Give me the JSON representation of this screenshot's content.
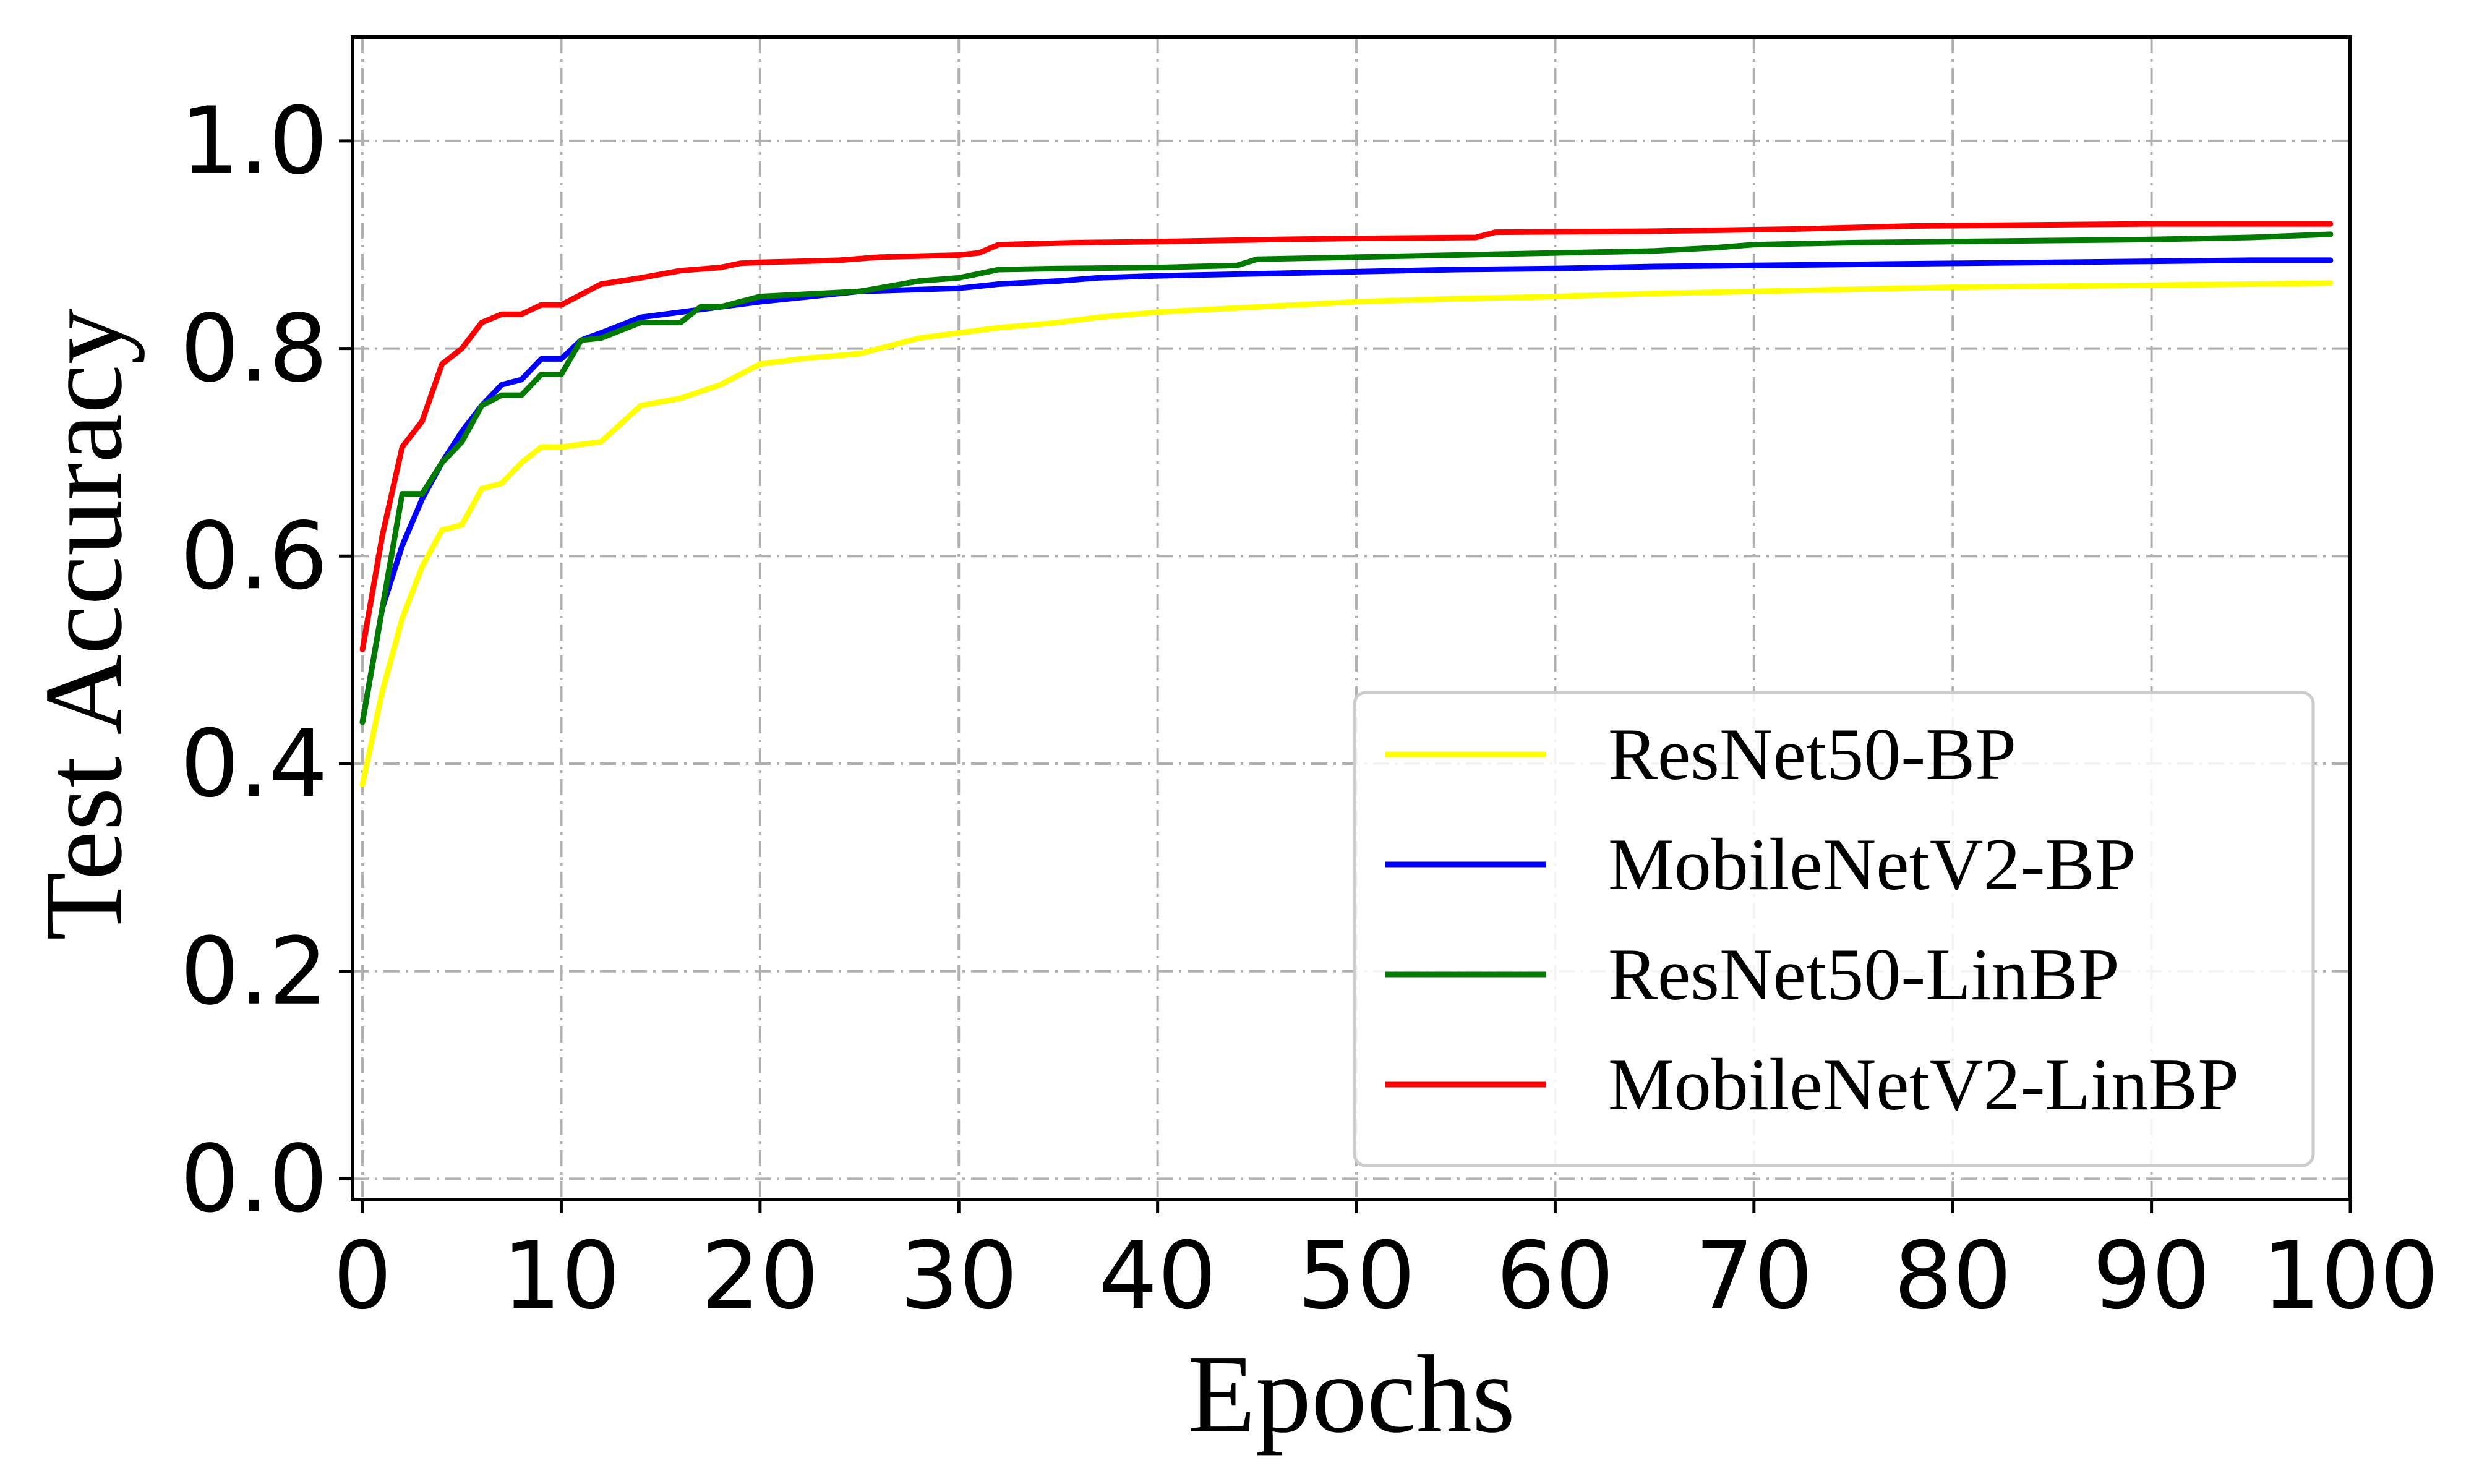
{
  "chart_data": {
    "type": "line",
    "xlabel": "Epochs",
    "ylabel": "Test Accuracy",
    "xlim": [
      -0.5,
      100
    ],
    "ylim": [
      -0.02,
      1.1
    ],
    "xticks": [
      0,
      10,
      20,
      30,
      40,
      50,
      60,
      70,
      80,
      90,
      100
    ],
    "yticks": [
      0.0,
      0.2,
      0.4,
      0.6,
      0.8,
      1.0
    ],
    "xtick_labels": [
      "0",
      "10",
      "20",
      "30",
      "40",
      "50",
      "60",
      "70",
      "80",
      "90",
      "100"
    ],
    "ytick_labels": [
      "0.0",
      "0.2",
      "0.4",
      "0.6",
      "0.8",
      "1.0"
    ],
    "grid": true,
    "legend_position": "lower-right",
    "series": [
      {
        "name": "ResNet50-BP",
        "color": "#ffff00",
        "x": [
          0,
          1,
          2,
          3,
          4,
          5,
          6,
          7,
          8,
          9,
          10,
          12,
          14,
          16,
          18,
          20,
          22,
          25,
          28,
          30,
          32,
          35,
          37,
          40,
          45,
          50,
          55,
          60,
          65,
          70,
          75,
          80,
          85,
          90,
          95,
          99
        ],
        "y": [
          0.38,
          0.47,
          0.54,
          0.59,
          0.625,
          0.63,
          0.665,
          0.67,
          0.69,
          0.705,
          0.705,
          0.71,
          0.745,
          0.752,
          0.765,
          0.785,
          0.79,
          0.795,
          0.81,
          0.815,
          0.82,
          0.825,
          0.83,
          0.835,
          0.84,
          0.845,
          0.848,
          0.85,
          0.853,
          0.855,
          0.857,
          0.859,
          0.86,
          0.861,
          0.862,
          0.863
        ]
      },
      {
        "name": "MobileNetV2-BP",
        "color": "#0000ff",
        "x": [
          0,
          1,
          2,
          3,
          4,
          5,
          6,
          7,
          8,
          9,
          10,
          11,
          12,
          14,
          16,
          18,
          20,
          25,
          30,
          32,
          35,
          37,
          40,
          45,
          50,
          55,
          60,
          65,
          70,
          75,
          80,
          85,
          90,
          95,
          99
        ],
        "y": [
          0.44,
          0.55,
          0.61,
          0.655,
          0.69,
          0.72,
          0.745,
          0.765,
          0.77,
          0.79,
          0.79,
          0.808,
          0.815,
          0.83,
          0.835,
          0.84,
          0.845,
          0.855,
          0.858,
          0.862,
          0.865,
          0.868,
          0.87,
          0.872,
          0.874,
          0.876,
          0.877,
          0.879,
          0.88,
          0.881,
          0.882,
          0.883,
          0.884,
          0.885,
          0.885
        ]
      },
      {
        "name": "ResNet50-LinBP",
        "color": "#007a00",
        "x": [
          0,
          1,
          2,
          3,
          4,
          5,
          6,
          7,
          8,
          9,
          10,
          11,
          12,
          14,
          16,
          17,
          18,
          20,
          25,
          28,
          30,
          31,
          32,
          35,
          40,
          44,
          45,
          50,
          55,
          60,
          65,
          68,
          70,
          75,
          80,
          85,
          90,
          95,
          99
        ],
        "y": [
          0.44,
          0.55,
          0.66,
          0.66,
          0.69,
          0.71,
          0.745,
          0.755,
          0.755,
          0.775,
          0.775,
          0.808,
          0.81,
          0.825,
          0.825,
          0.84,
          0.84,
          0.85,
          0.855,
          0.865,
          0.868,
          0.872,
          0.876,
          0.877,
          0.878,
          0.88,
          0.886,
          0.888,
          0.89,
          0.892,
          0.894,
          0.897,
          0.9,
          0.902,
          0.903,
          0.904,
          0.905,
          0.907,
          0.91
        ]
      },
      {
        "name": "MobileNetV2-LinBP",
        "color": "#ff0000",
        "x": [
          0,
          1,
          2,
          3,
          4,
          5,
          6,
          7,
          8,
          9,
          10,
          11,
          12,
          14,
          16,
          18,
          19,
          20,
          24,
          26,
          30,
          31,
          32,
          36,
          40,
          46,
          50,
          56,
          57,
          65,
          72,
          78,
          90,
          99
        ],
        "y": [
          0.51,
          0.62,
          0.705,
          0.73,
          0.785,
          0.8,
          0.825,
          0.833,
          0.833,
          0.842,
          0.842,
          0.852,
          0.862,
          0.868,
          0.875,
          0.878,
          0.882,
          0.883,
          0.885,
          0.888,
          0.89,
          0.892,
          0.9,
          0.902,
          0.903,
          0.905,
          0.906,
          0.907,
          0.912,
          0.913,
          0.915,
          0.918,
          0.92,
          0.92
        ]
      }
    ]
  }
}
